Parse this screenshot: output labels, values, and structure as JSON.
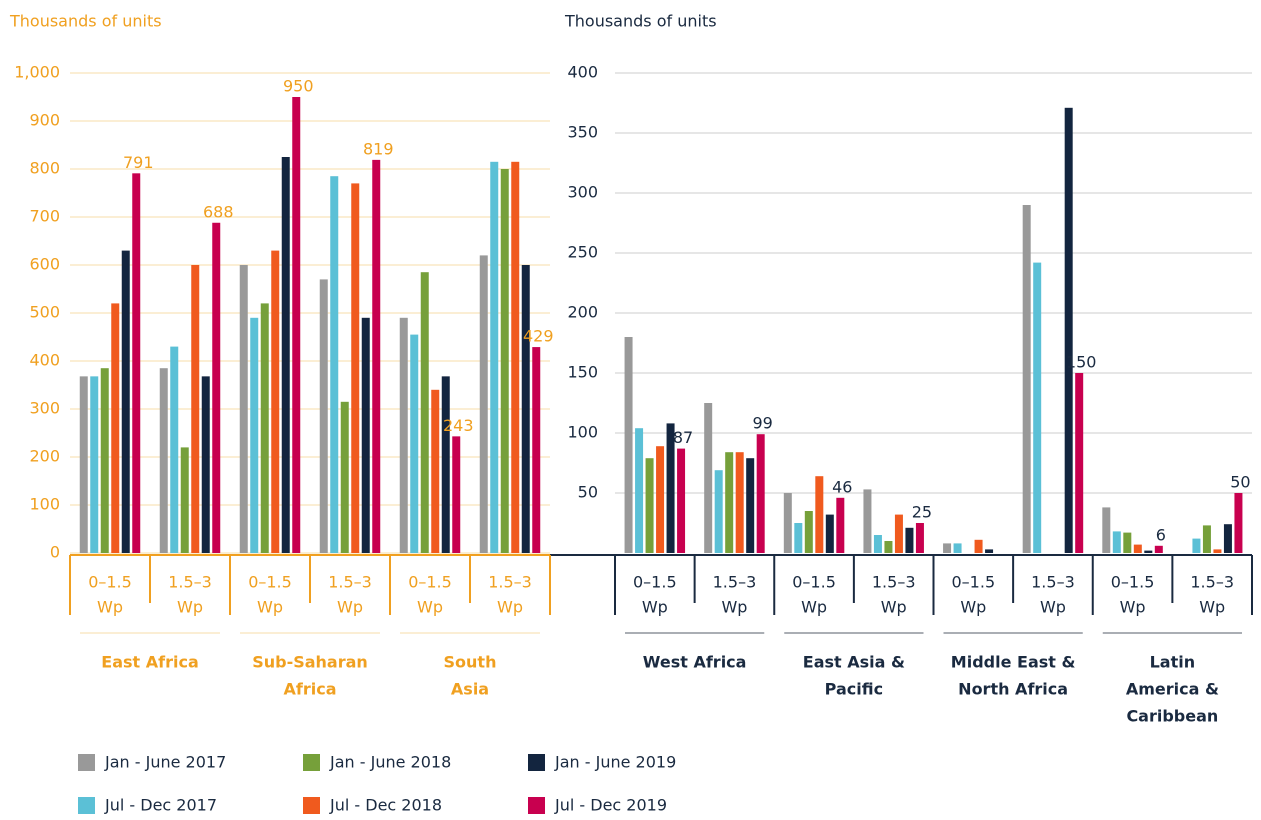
{
  "chart_data": [
    {
      "type": "bar",
      "y_label": "Thousands of units",
      "text_color": "#f0a020",
      "grid_color": "#f7dca8",
      "ylim": [
        0,
        1000
      ],
      "yticks": [
        0,
        100,
        200,
        300,
        400,
        500,
        600,
        700,
        800,
        900,
        {
          "value": 1000,
          "label": "1,000"
        }
      ],
      "grid": true,
      "categories": [
        [
          "0–1.5",
          "Wp"
        ],
        [
          "1.5–3",
          "Wp"
        ],
        [
          "0–1.5",
          "Wp"
        ],
        [
          "1.5–3",
          "Wp"
        ],
        [
          "0–1.5",
          "Wp"
        ],
        [
          "1.5–3",
          "Wp"
        ]
      ],
      "groups": [
        [
          "East Africa"
        ],
        [
          "Sub-Saharan",
          "Africa"
        ],
        [
          "South",
          "Asia"
        ]
      ],
      "series": [
        {
          "name": "Jan - June 2017",
          "color": "#999999",
          "values": [
            368,
            385,
            600,
            570,
            490,
            620
          ]
        },
        {
          "name": "Jul - Dec 2017",
          "color": "#5bc0d6",
          "values": [
            368,
            430,
            490,
            785,
            455,
            815
          ]
        },
        {
          "name": "Jan - June 2018",
          "color": "#76a03a",
          "values": [
            385,
            220,
            520,
            315,
            585,
            800
          ]
        },
        {
          "name": "Jul - Dec 2018",
          "color": "#f05a1e",
          "values": [
            520,
            600,
            630,
            770,
            340,
            815
          ]
        },
        {
          "name": "Jan - June 2019",
          "color": "#13253f",
          "values": [
            630,
            368,
            825,
            490,
            368,
            600
          ]
        },
        {
          "name": "Jul - Dec 2019",
          "color": "#c8004f",
          "values": [
            791,
            688,
            950,
            819,
            243,
            429
          ],
          "data_labels": true
        }
      ]
    },
    {
      "type": "bar",
      "y_label": "Thousands of units",
      "text_color": "#1a2a40",
      "grid_color": "#cccccc",
      "ylim": [
        0,
        400
      ],
      "yticks": [
        50,
        100,
        150,
        200,
        250,
        300,
        350,
        400
      ],
      "grid": true,
      "categories": [
        [
          "0–1.5",
          "Wp"
        ],
        [
          "1.5–3",
          "Wp"
        ],
        [
          "0–1.5",
          "Wp"
        ],
        [
          "1.5–3",
          "Wp"
        ],
        [
          "0–1.5",
          "Wp"
        ],
        [
          "1.5–3",
          "Wp"
        ],
        [
          "0–1.5",
          "Wp"
        ],
        [
          "1.5–3",
          "Wp"
        ]
      ],
      "groups": [
        [
          "West Africa"
        ],
        [
          "East Asia &",
          "Pacific"
        ],
        [
          "Middle East &",
          "North Africa"
        ],
        [
          "Latin",
          "America &",
          "Caribbean"
        ]
      ],
      "series": [
        {
          "color": "#999999",
          "values": [
            180,
            125,
            50,
            53,
            8,
            290,
            38,
            null
          ]
        },
        {
          "color": "#5bc0d6",
          "values": [
            104,
            69,
            25,
            15,
            8,
            242,
            18,
            12
          ]
        },
        {
          "color": "#76a03a",
          "values": [
            79,
            84,
            35,
            10,
            null,
            null,
            17,
            23
          ]
        },
        {
          "color": "#f05a1e",
          "values": [
            89,
            84,
            64,
            32,
            11,
            null,
            7,
            3
          ]
        },
        {
          "color": "#13253f",
          "values": [
            108,
            79,
            32,
            21,
            3,
            371,
            2,
            24
          ]
        },
        {
          "color": "#c8004f",
          "values": [
            87,
            99,
            46,
            25,
            null,
            150,
            6,
            50
          ],
          "data_labels": true
        }
      ]
    }
  ]
}
